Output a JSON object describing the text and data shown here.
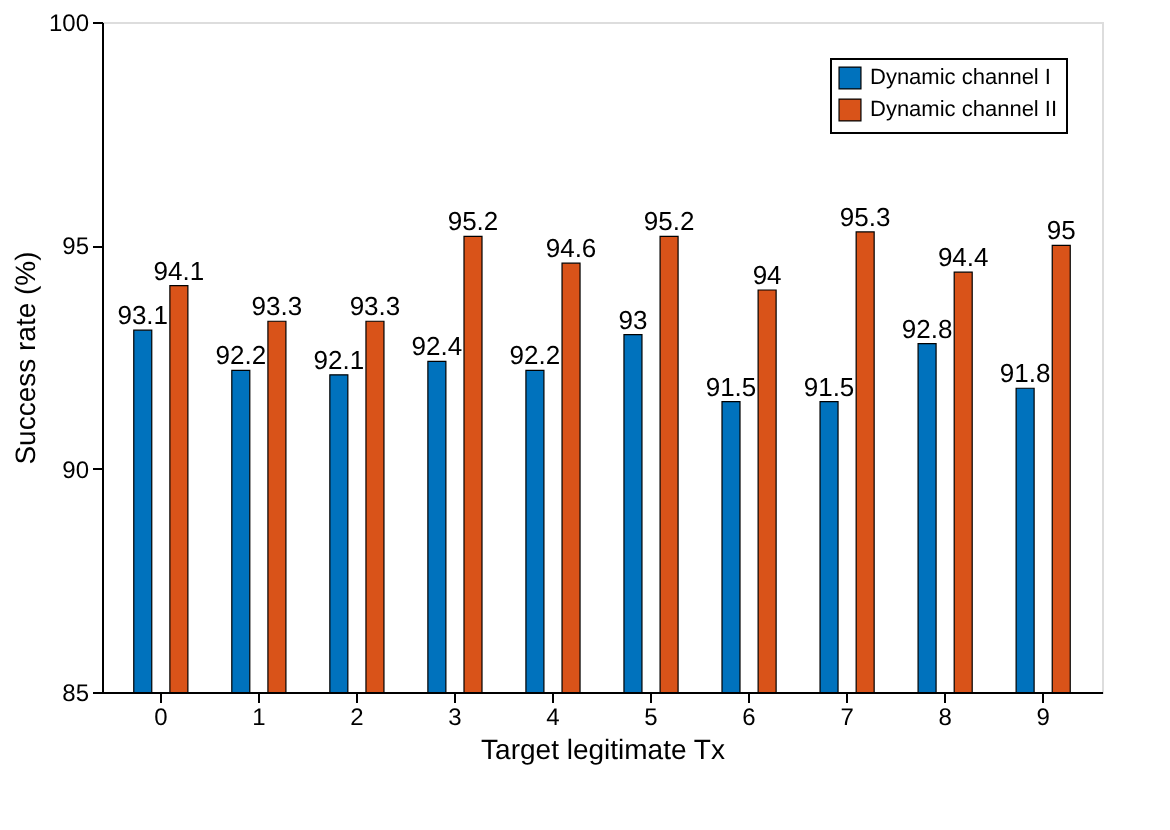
{
  "chart_data": {
    "type": "bar",
    "xlabel": "Target legitimate Tx",
    "ylabel": "Success rate (%)",
    "categories": [
      "0",
      "1",
      "2",
      "3",
      "4",
      "5",
      "6",
      "7",
      "8",
      "9"
    ],
    "series": [
      {
        "name": "Dynamic channel I",
        "color": "#0072bd",
        "values": [
          93.1,
          92.2,
          92.1,
          92.4,
          92.2,
          93,
          91.5,
          91.5,
          92.8,
          91.8
        ]
      },
      {
        "name": "Dynamic channel II",
        "color": "#d95319",
        "values": [
          94.1,
          93.3,
          93.3,
          95.2,
          94.6,
          95.2,
          94,
          95.3,
          94.4,
          95
        ]
      }
    ],
    "ylim": [
      85,
      100
    ],
    "yticks": [
      85,
      90,
      95,
      100
    ],
    "grid": false,
    "legend": "top right",
    "data_labels": true
  }
}
